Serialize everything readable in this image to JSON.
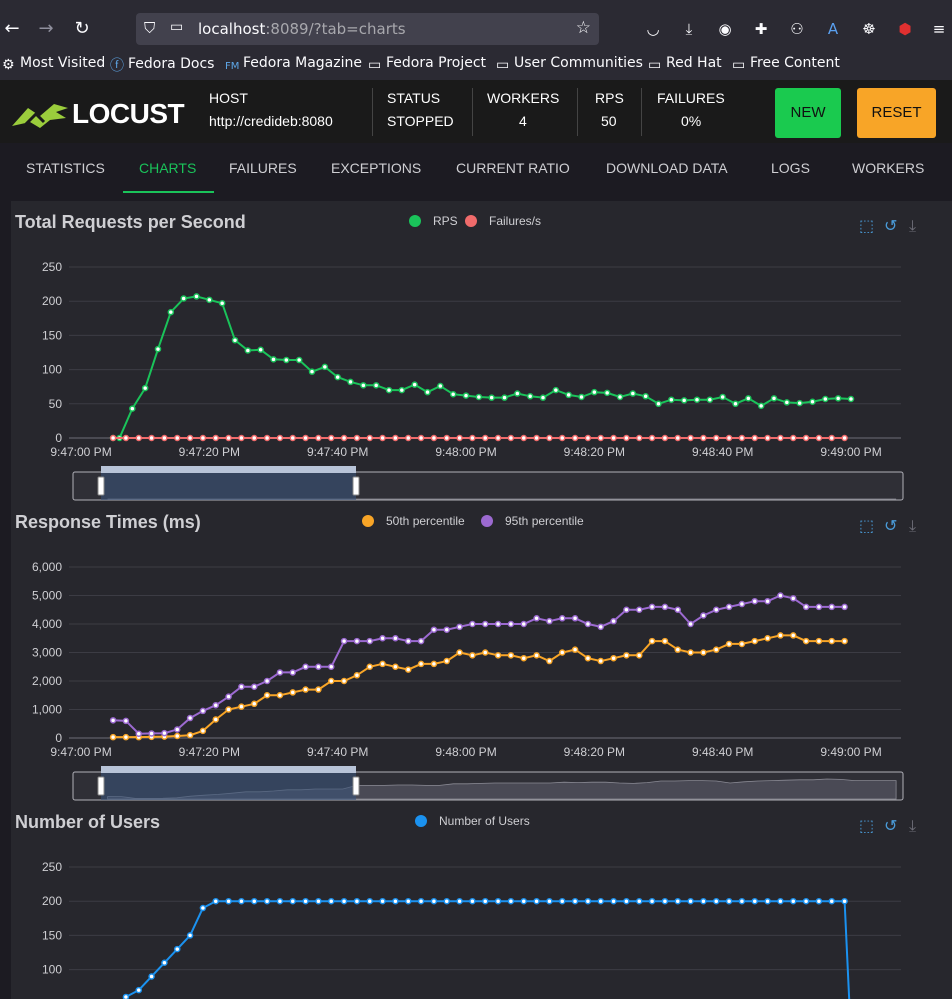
{
  "browser": {
    "url_host": "localhost",
    "url_rest": ":8089/?tab=charts",
    "bookmarks": [
      "Most Visited",
      "Fedora Docs",
      "Fedora Magazine",
      "Fedora Project",
      "User Communities",
      "Red Hat",
      "Free Content"
    ]
  },
  "header": {
    "logo_text": "LOCUST",
    "host_label": "HOST",
    "host_value": "http://credideb:8080",
    "status_label": "STATUS",
    "status_value": "STOPPED",
    "workers_label": "WORKERS",
    "workers_value": "4",
    "rps_label": "RPS",
    "rps_value": "50",
    "failures_label": "FAILURES",
    "failures_value": "0%",
    "new_label": "NEW",
    "reset_label": "RESET"
  },
  "tabs": [
    "STATISTICS",
    "CHARTS",
    "FAILURES",
    "EXCEPTIONS",
    "CURRENT RATIO",
    "DOWNLOAD DATA",
    "LOGS",
    "WORKERS"
  ],
  "active_tab": "CHARTS",
  "colors": {
    "rps": "#1ac35a",
    "failures": "#f06b6b",
    "p50": "#f8a527",
    "p95": "#9c6ad1",
    "users": "#1b92f0"
  },
  "chart_data": [
    {
      "type": "line",
      "title": "Total Requests per Second",
      "ylim": [
        0,
        250
      ],
      "yticks": [
        "250",
        "200",
        "150",
        "100",
        "50",
        "0"
      ],
      "xticks": [
        "9:47:00 PM",
        "9:47:20 PM",
        "9:47:40 PM",
        "9:48:00 PM",
        "9:48:20 PM",
        "9:48:40 PM",
        "9:49:00 PM"
      ],
      "x_seconds": [
        0,
        20,
        40,
        60,
        80,
        100,
        120
      ],
      "series": [
        {
          "name": "RPS",
          "x": [
            5,
            6,
            8,
            10,
            12,
            14,
            16,
            18,
            20,
            22,
            24,
            26,
            28,
            30,
            32,
            34,
            36,
            38,
            40,
            42,
            44,
            46,
            48,
            50,
            52,
            54,
            56,
            58,
            60,
            62,
            64,
            66,
            68,
            70,
            72,
            74,
            76,
            78,
            80,
            82,
            84,
            86,
            88,
            90,
            92,
            94,
            96,
            98,
            100,
            102,
            104,
            106,
            108,
            110,
            112,
            114,
            116,
            118,
            120
          ],
          "values": [
            0,
            0,
            43,
            73,
            130,
            184,
            204,
            207,
            202,
            197,
            143,
            128,
            129,
            115,
            114,
            114,
            97,
            104,
            89,
            82,
            77,
            77,
            70,
            70,
            78,
            67,
            76,
            64,
            62,
            60,
            59,
            59,
            65,
            61,
            59,
            70,
            63,
            60,
            67,
            66,
            60,
            65,
            61,
            50,
            56,
            55,
            56,
            56,
            60,
            50,
            58,
            47,
            58,
            52,
            51,
            53,
            57,
            58,
            57
          ],
          "color": "#1ac35a"
        },
        {
          "name": "Failures/s",
          "x": [
            5,
            7,
            9,
            11,
            13,
            15,
            17,
            19,
            21,
            23,
            25,
            27,
            29,
            31,
            33,
            35,
            37,
            39,
            41,
            43,
            45,
            47,
            49,
            51,
            53,
            55,
            57,
            59,
            61,
            63,
            65,
            67,
            69,
            71,
            73,
            75,
            77,
            79,
            81,
            83,
            85,
            87,
            89,
            91,
            93,
            95,
            97,
            99,
            101,
            103,
            105,
            107,
            109,
            111,
            113,
            115,
            117,
            119
          ],
          "values": [
            0,
            0,
            0,
            0,
            0,
            0,
            0,
            0,
            0,
            0,
            0,
            0,
            0,
            0,
            0,
            0,
            0,
            0,
            0,
            0,
            0,
            0,
            0,
            0,
            0,
            0,
            0,
            0,
            0,
            0,
            0,
            0,
            0,
            0,
            0,
            0,
            0,
            0,
            0,
            0,
            0,
            0,
            0,
            0,
            0,
            0,
            0,
            0,
            0,
            0,
            0,
            0,
            0,
            0,
            0,
            0,
            0,
            0
          ],
          "color": "#f06b6b"
        }
      ]
    },
    {
      "type": "line",
      "title": "Response Times (ms)",
      "ylim": [
        0,
        6000
      ],
      "yticks": [
        "6,000",
        "5,000",
        "4,000",
        "3,000",
        "2,000",
        "1,000",
        "0"
      ],
      "xticks": [
        "9:47:00 PM",
        "9:47:20 PM",
        "9:47:40 PM",
        "9:48:00 PM",
        "9:48:20 PM",
        "9:48:40 PM",
        "9:49:00 PM"
      ],
      "series": [
        {
          "name": "50th percentile",
          "x": [
            5,
            7,
            9,
            11,
            13,
            15,
            17,
            19,
            21,
            23,
            25,
            27,
            29,
            31,
            33,
            35,
            37,
            39,
            41,
            43,
            45,
            47,
            49,
            51,
            53,
            55,
            57,
            59,
            61,
            63,
            65,
            67,
            69,
            71,
            73,
            75,
            77,
            79,
            81,
            83,
            85,
            87,
            89,
            91,
            93,
            95,
            97,
            99,
            101,
            103,
            105,
            107,
            109,
            111,
            113,
            115,
            117,
            119
          ],
          "values": [
            30,
            30,
            30,
            40,
            50,
            70,
            100,
            250,
            650,
            1000,
            1100,
            1200,
            1500,
            1500,
            1600,
            1700,
            1700,
            2000,
            2000,
            2200,
            2500,
            2600,
            2500,
            2400,
            2600,
            2600,
            2700,
            3000,
            2900,
            3000,
            2900,
            2900,
            2800,
            2900,
            2700,
            3000,
            3100,
            2800,
            2700,
            2800,
            2900,
            2900,
            3400,
            3400,
            3100,
            3000,
            3000,
            3100,
            3300,
            3300,
            3400,
            3500,
            3600,
            3600,
            3400,
            3400,
            3400,
            3400
          ],
          "color": "#f8a527"
        },
        {
          "name": "95th percentile",
          "x": [
            5,
            7,
            9,
            11,
            13,
            15,
            17,
            19,
            21,
            23,
            25,
            27,
            29,
            31,
            33,
            35,
            37,
            39,
            41,
            43,
            45,
            47,
            49,
            51,
            53,
            55,
            57,
            59,
            61,
            63,
            65,
            67,
            69,
            71,
            73,
            75,
            77,
            79,
            81,
            83,
            85,
            87,
            89,
            91,
            93,
            95,
            97,
            99,
            101,
            103,
            105,
            107,
            109,
            111,
            113,
            115,
            117,
            119
          ],
          "values": [
            620,
            600,
            150,
            160,
            170,
            300,
            700,
            950,
            1150,
            1450,
            1800,
            1800,
            2000,
            2300,
            2300,
            2500,
            2500,
            2500,
            3400,
            3400,
            3400,
            3500,
            3500,
            3400,
            3400,
            3800,
            3800,
            3900,
            4000,
            4000,
            4000,
            4000,
            4000,
            4200,
            4100,
            4200,
            4200,
            4000,
            3900,
            4100,
            4500,
            4500,
            4600,
            4600,
            4500,
            4000,
            4300,
            4500,
            4600,
            4700,
            4800,
            4800,
            5000,
            4900,
            4600,
            4600,
            4600,
            4600
          ],
          "color": "#9c6ad1"
        }
      ]
    },
    {
      "type": "line",
      "title": "Number of Users",
      "ylim": [
        0,
        250
      ],
      "yticks": [
        "250",
        "200",
        "150",
        "100"
      ],
      "series": [
        {
          "name": "Number of Users",
          "x": [
            5,
            7,
            9,
            11,
            13,
            15,
            17,
            19,
            21,
            23,
            25,
            27,
            29,
            31,
            33,
            35,
            37,
            39,
            41,
            43,
            45,
            47,
            49,
            51,
            53,
            55,
            57,
            59,
            61,
            63,
            65,
            67,
            69,
            71,
            73,
            75,
            77,
            79,
            81,
            83,
            85,
            87,
            89,
            91,
            93,
            95,
            97,
            99,
            101,
            103,
            105,
            107,
            109,
            111,
            113,
            115,
            117,
            119,
            120
          ],
          "values": [
            40,
            60,
            70,
            90,
            110,
            130,
            150,
            190,
            200,
            200,
            200,
            200,
            200,
            200,
            200,
            200,
            200,
            200,
            200,
            200,
            200,
            200,
            200,
            200,
            200,
            200,
            200,
            200,
            200,
            200,
            200,
            200,
            200,
            200,
            200,
            200,
            200,
            200,
            200,
            200,
            200,
            200,
            200,
            200,
            200,
            200,
            200,
            200,
            200,
            200,
            200,
            200,
            200,
            200,
            200,
            200,
            200,
            200,
            0
          ],
          "color": "#1b92f0"
        }
      ]
    }
  ]
}
